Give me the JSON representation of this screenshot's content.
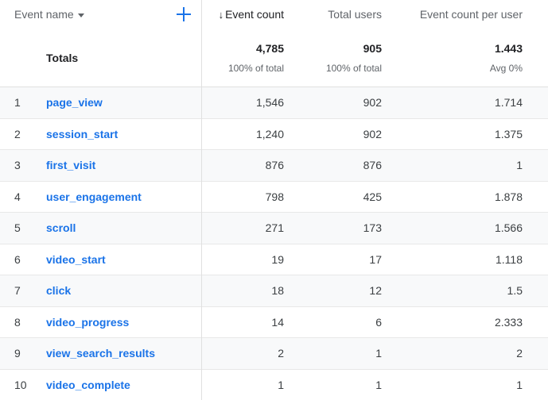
{
  "header": {
    "event_name_label": "Event name",
    "event_count_label": "Event count",
    "sort_arrow": "↓",
    "total_users_label": "Total users",
    "event_count_per_user_label": "Event count per user"
  },
  "totals": {
    "label": "Totals",
    "event_count": "4,785",
    "event_count_sub": "100% of total",
    "total_users": "905",
    "total_users_sub": "100% of total",
    "event_count_per_user": "1.443",
    "event_count_per_user_sub": "Avg 0%"
  },
  "rows": [
    {
      "num": "1",
      "name": "page_view",
      "event_count": "1,546",
      "total_users": "902",
      "per_user": "1.714"
    },
    {
      "num": "2",
      "name": "session_start",
      "event_count": "1,240",
      "total_users": "902",
      "per_user": "1.375"
    },
    {
      "num": "3",
      "name": "first_visit",
      "event_count": "876",
      "total_users": "876",
      "per_user": "1"
    },
    {
      "num": "4",
      "name": "user_engagement",
      "event_count": "798",
      "total_users": "425",
      "per_user": "1.878"
    },
    {
      "num": "5",
      "name": "scroll",
      "event_count": "271",
      "total_users": "173",
      "per_user": "1.566"
    },
    {
      "num": "6",
      "name": "video_start",
      "event_count": "19",
      "total_users": "17",
      "per_user": "1.118"
    },
    {
      "num": "7",
      "name": "click",
      "event_count": "18",
      "total_users": "12",
      "per_user": "1.5"
    },
    {
      "num": "8",
      "name": "video_progress",
      "event_count": "14",
      "total_users": "6",
      "per_user": "2.333"
    },
    {
      "num": "9",
      "name": "view_search_results",
      "event_count": "2",
      "total_users": "1",
      "per_user": "2"
    },
    {
      "num": "10",
      "name": "video_complete",
      "event_count": "1",
      "total_users": "1",
      "per_user": "1"
    }
  ]
}
